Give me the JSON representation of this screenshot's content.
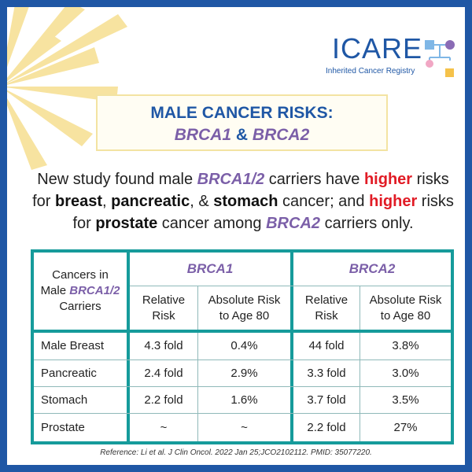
{
  "logo": {
    "name": "ICARE",
    "subtitle": "Inherited Cancer Registry"
  },
  "title": {
    "line1": "MALE CANCER RISKS:",
    "gene1": "BRCA1",
    "amp": "&",
    "gene2": "BRCA2"
  },
  "description": {
    "p1": "New study found male ",
    "gene": "BRCA1/2",
    "p2": " carriers have ",
    "higher": "higher",
    "p3": " risks for ",
    "breast": "breast",
    "p4": ", ",
    "pancreatic": "pancreatic",
    "p5": ", & ",
    "stomach": "stomach",
    "p6": " cancer; and ",
    "higher2": "higher",
    "p7": " risks for ",
    "prostate": "prostate",
    "p8": " cancer among ",
    "gene2": "BRCA2",
    "p9": " carriers only."
  },
  "table": {
    "corner": {
      "line1": "Cancers in",
      "line2_prefix": "Male ",
      "line2_gene": "BRCA1/2",
      "line3": "Carriers"
    },
    "groups": [
      "BRCA1",
      "BRCA2"
    ],
    "subheaders": {
      "relative_line1": "Relative",
      "relative_line2": "Risk",
      "absolute_line1": "Absolute Risk",
      "absolute_line2": "to Age 80"
    },
    "rows": [
      {
        "cancer": "Male Breast",
        "brca1_rr": "4.3 fold",
        "brca1_ar": "0.4%",
        "brca2_rr": "44 fold",
        "brca2_ar": "3.8%"
      },
      {
        "cancer": "Pancreatic",
        "brca1_rr": "2.4 fold",
        "brca1_ar": "2.9%",
        "brca2_rr": "3.3 fold",
        "brca2_ar": "3.0%"
      },
      {
        "cancer": "Stomach",
        "brca1_rr": "2.2 fold",
        "brca1_ar": "1.6%",
        "brca2_rr": "3.7 fold",
        "brca2_ar": "3.5%"
      },
      {
        "cancer": "Prostate",
        "brca1_rr": "~",
        "brca1_ar": "~",
        "brca2_rr": "2.2 fold",
        "brca2_ar": "27%"
      }
    ]
  },
  "reference": "Reference: Li et al. J Clin Oncol. 2022 Jan 25;JCO2102112. PMID: 35077220.",
  "colors": {
    "frame": "#1f57a5",
    "gene": "#7b5fa8",
    "highlight": "#e11b25",
    "table_border": "#169b9b",
    "sunburst": "#f7e3a0"
  }
}
